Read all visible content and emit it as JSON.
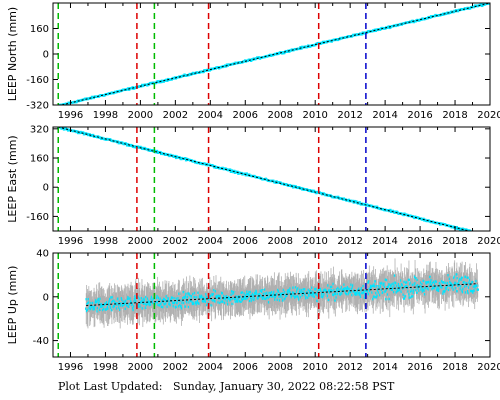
{
  "footer": {
    "label": "Plot Last Updated:",
    "timestamp": "Sunday, January 30, 2022 08:22:58 PST"
  },
  "colors": {
    "data": "#00e5ff",
    "error_bars": "#b0b0b0",
    "model": "#000000",
    "red_lines": "#dd0000",
    "green_lines": "#00bb00",
    "blue_lines": "#0000cc"
  },
  "chart_data": [
    {
      "type": "scatter",
      "ylabel": "LEEP North (mm)",
      "xlim": [
        1995.0,
        2020.0
      ],
      "ylim": [
        -320,
        320
      ],
      "yticks": [
        -320,
        -160,
        0,
        160
      ],
      "xticks": [
        1996,
        1998,
        2000,
        2002,
        2004,
        2006,
        2008,
        2010,
        2012,
        2014,
        2016,
        2018,
        2020
      ],
      "series": [
        {
          "values_from": "trend",
          "x": [
            1995.3,
            2020.0
          ],
          "y": [
            -325,
            320
          ],
          "noise_mm": 4
        }
      ],
      "vlines": [
        {
          "x": 1995.3,
          "color": "green"
        },
        {
          "x": 2000.8,
          "color": "green"
        },
        {
          "x": 1999.8,
          "color": "red"
        },
        {
          "x": 2003.9,
          "color": "red"
        },
        {
          "x": 2010.2,
          "color": "red"
        },
        {
          "x": 2012.9,
          "color": "blue"
        }
      ]
    },
    {
      "type": "scatter",
      "ylabel": "LEEP East (mm)",
      "xlim": [
        1995.0,
        2020.0
      ],
      "ylim": [
        -240,
        330
      ],
      "yticks": [
        -160,
        0,
        160,
        320
      ],
      "xticks": [
        1996,
        1998,
        2000,
        2002,
        2004,
        2006,
        2008,
        2010,
        2012,
        2014,
        2016,
        2018,
        2020
      ],
      "series": [
        {
          "values_from": "trend",
          "x": [
            1995.3,
            2019.0
          ],
          "y": [
            330,
            -245
          ],
          "noise_mm": 4
        }
      ],
      "vlines": [
        {
          "x": 1995.3,
          "color": "green"
        },
        {
          "x": 2000.8,
          "color": "green"
        },
        {
          "x": 1999.8,
          "color": "red"
        },
        {
          "x": 2003.9,
          "color": "red"
        },
        {
          "x": 2010.2,
          "color": "red"
        },
        {
          "x": 2012.9,
          "color": "blue"
        }
      ]
    },
    {
      "type": "scatter",
      "ylabel": "LEEP Up (mm)",
      "xlim": [
        1995.0,
        2020.0
      ],
      "ylim": [
        -55,
        40
      ],
      "yticks": [
        -40,
        0,
        40
      ],
      "xticks": [
        1996,
        1998,
        2000,
        2002,
        2004,
        2006,
        2008,
        2010,
        2012,
        2014,
        2016,
        2018,
        2020
      ],
      "series": [
        {
          "values_from": "trend",
          "x": [
            1996.9,
            2019.3
          ],
          "y": [
            -8,
            12
          ],
          "noise_mm": 5
        }
      ],
      "vlines": [
        {
          "x": 1995.3,
          "color": "green"
        },
        {
          "x": 2000.8,
          "color": "green"
        },
        {
          "x": 1999.8,
          "color": "red"
        },
        {
          "x": 2003.9,
          "color": "red"
        },
        {
          "x": 2010.2,
          "color": "red"
        },
        {
          "x": 2012.9,
          "color": "blue"
        }
      ]
    }
  ]
}
